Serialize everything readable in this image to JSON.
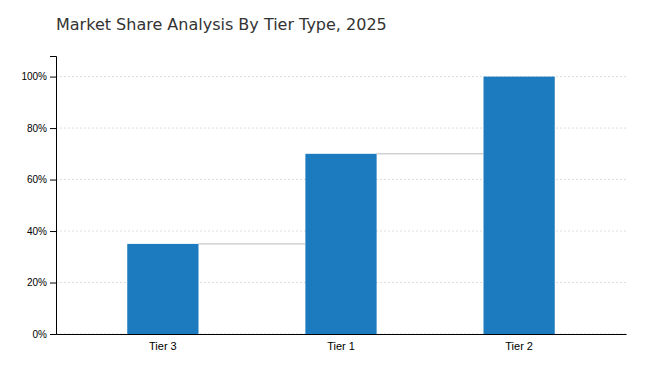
{
  "chart_data": {
    "type": "bar",
    "title": "Market Share Analysis By Tier Type, 2025",
    "categories": [
      "Tier 3",
      "Tier 1",
      "Tier 2"
    ],
    "values": [
      35,
      70,
      100
    ],
    "color": "#1C7BBF",
    "ylim": [
      0,
      108
    ],
    "yticks": [
      {
        "value": 0,
        "label": "0%"
      },
      {
        "value": 20,
        "label": "20%"
      },
      {
        "value": 40,
        "label": "40%"
      },
      {
        "value": 60,
        "label": "60%"
      },
      {
        "value": 80,
        "label": "80%"
      },
      {
        "value": 100,
        "label": "100%"
      }
    ],
    "grid": true
  }
}
